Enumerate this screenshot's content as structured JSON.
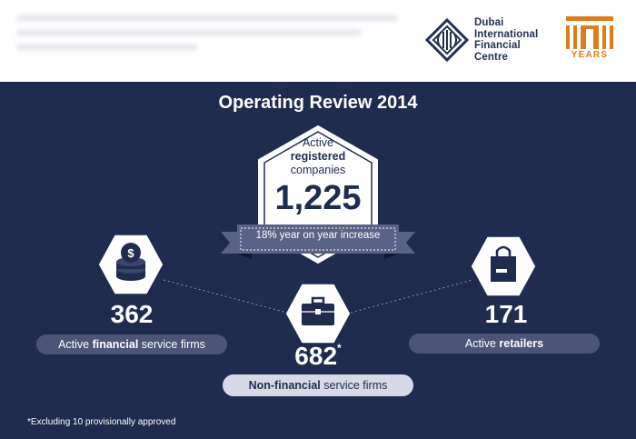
{
  "header": {
    "logo_lines": [
      "Dubai",
      "International",
      "Financial",
      "Centre"
    ],
    "years_label": "YEARS"
  },
  "title": "Operating Review 2014",
  "highlight": {
    "line1": "Active",
    "line2": "registered",
    "line3": "companies",
    "value": "1,225",
    "ribbon": "18% year on year increase"
  },
  "stats": {
    "financial": {
      "value": "362",
      "label_prefix": "Active ",
      "label_bold": "financial",
      "label_suffix": " service firms",
      "icon": "coins-icon"
    },
    "non_financial": {
      "value": "682",
      "marker": "*",
      "label_bold": "Non-financial",
      "label_suffix": " service firms",
      "icon": "briefcase-icon"
    },
    "retailers": {
      "value": "171",
      "label_prefix": "Active ",
      "label_bold": "retailers",
      "icon": "shopping-bag-icon"
    }
  },
  "footnote": "*Excluding 10 provisionally approved",
  "colors": {
    "navy": "#1f2b4f",
    "pill": "#4c5478",
    "ribbon": "#5a6287",
    "orange": "#e07b1a"
  }
}
